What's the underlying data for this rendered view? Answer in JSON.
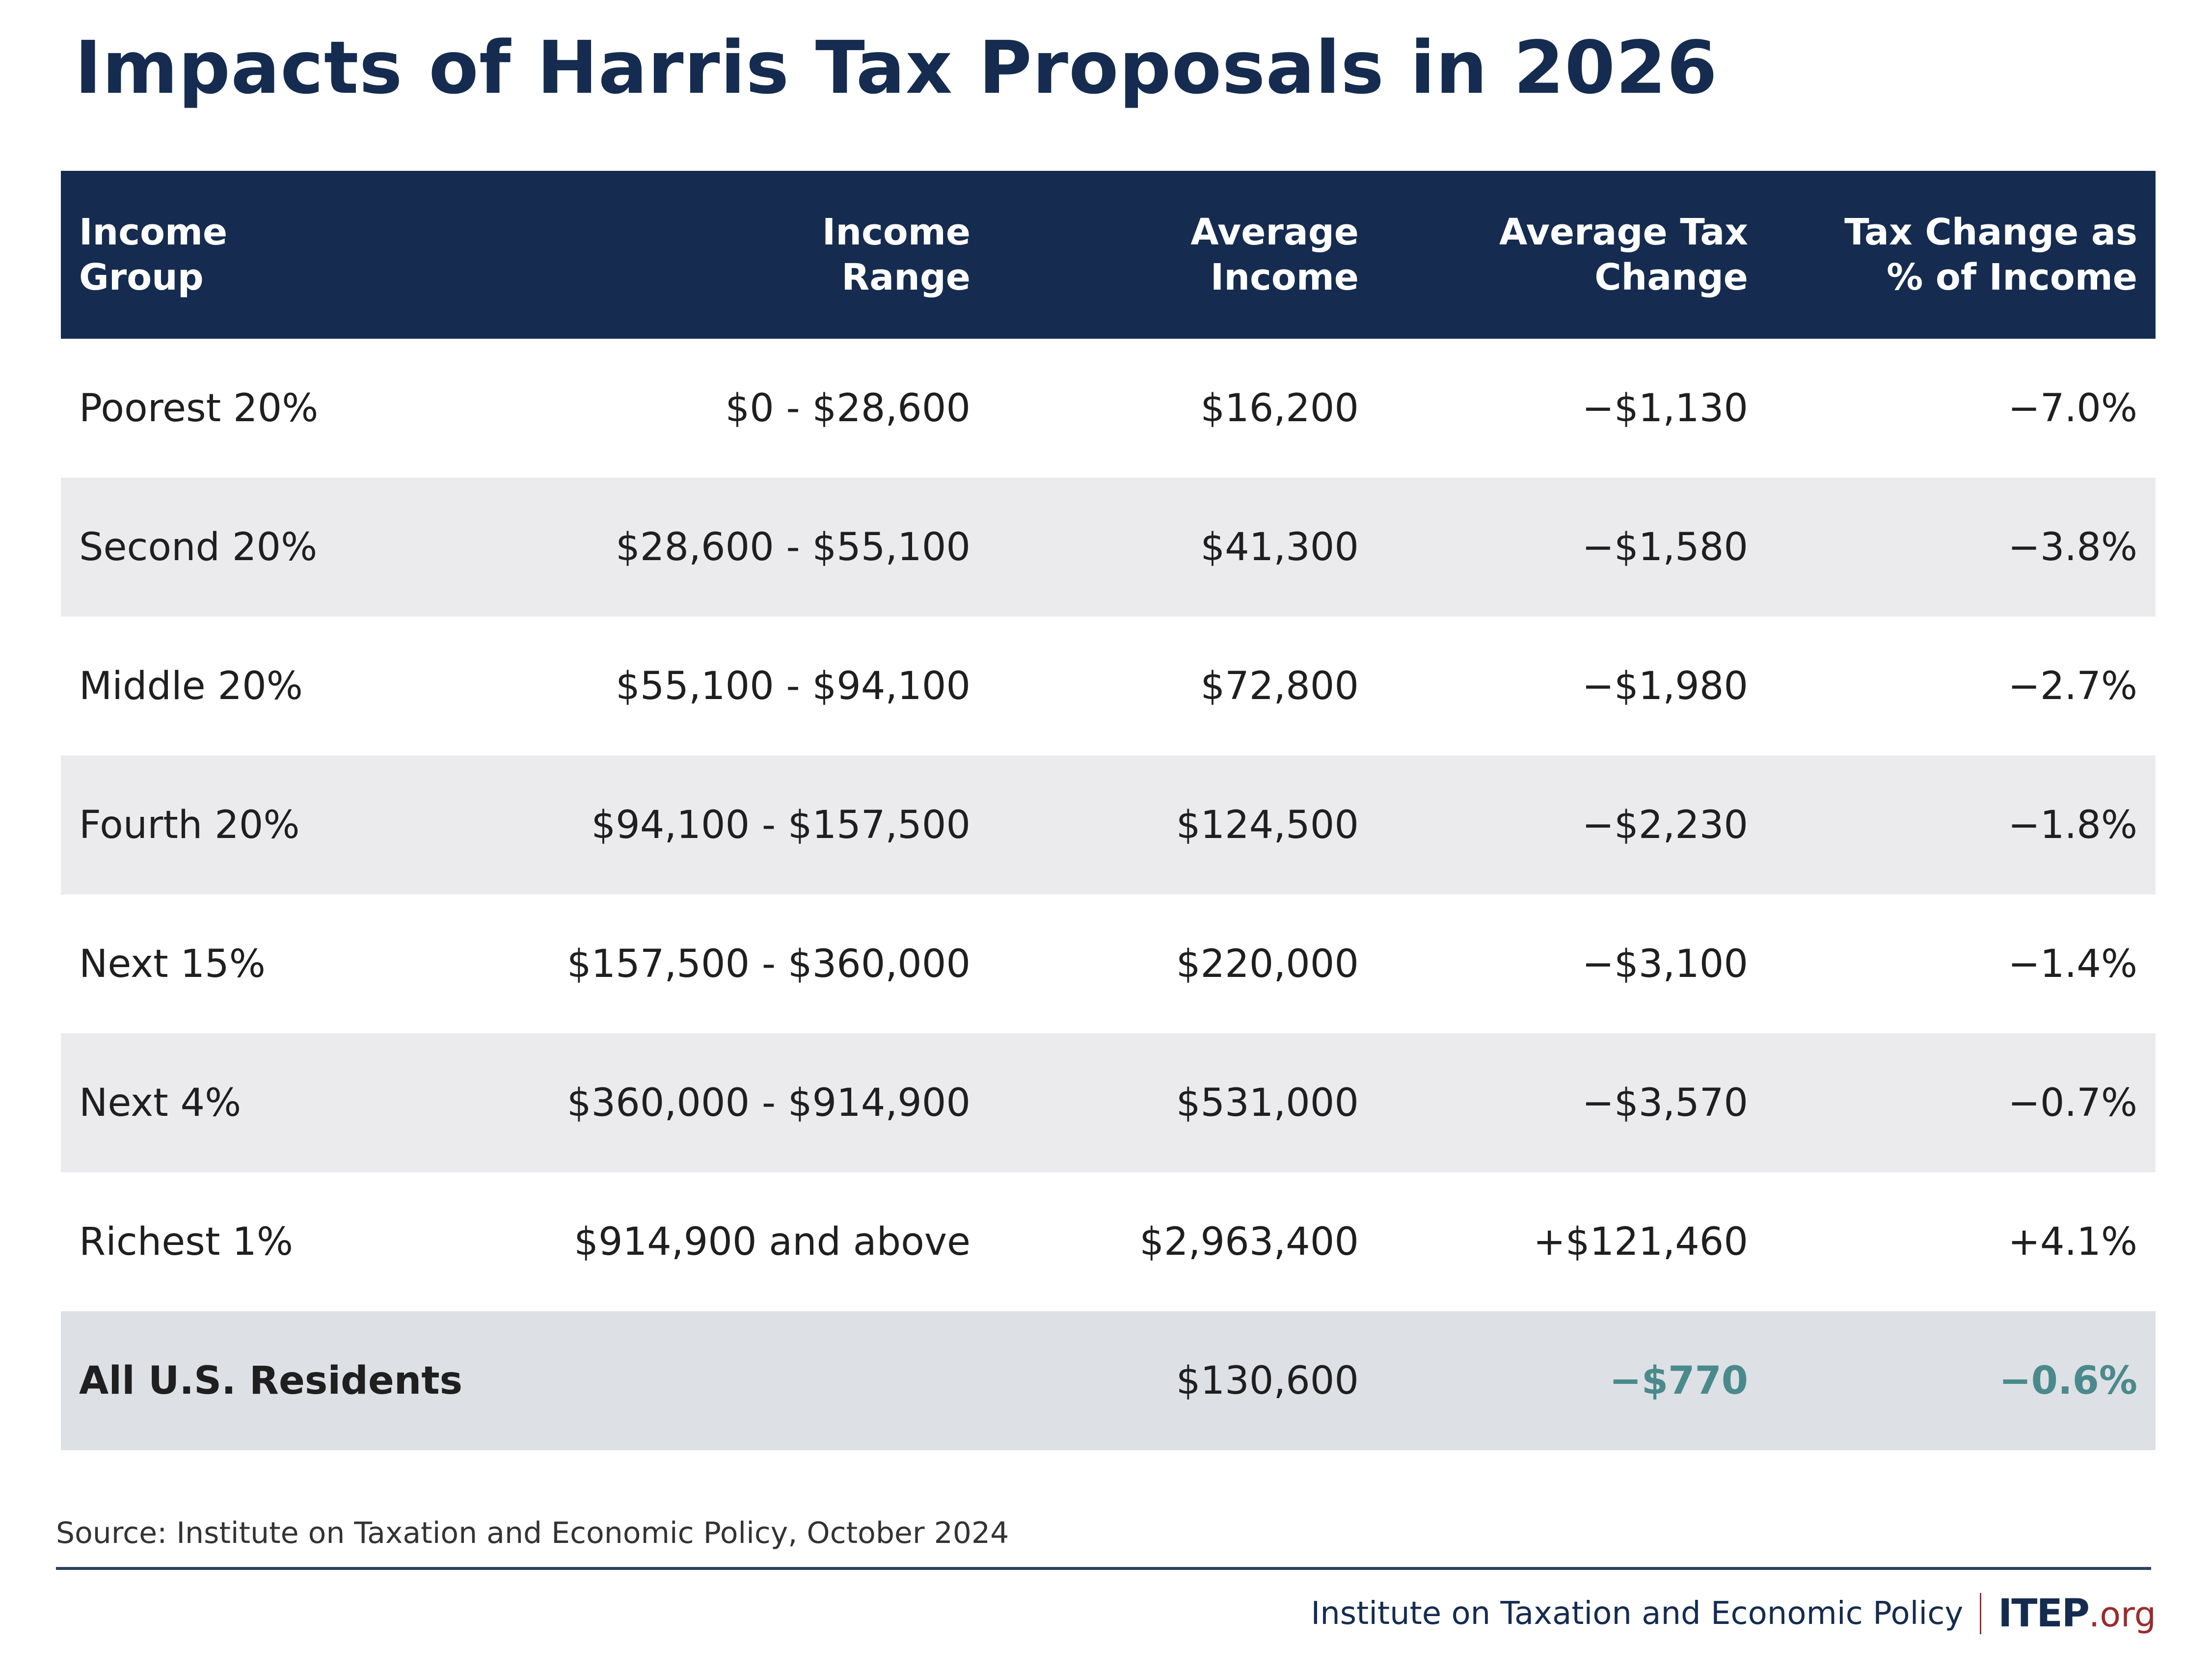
{
  "title": "Impacts of Harris Tax Proposals in 2026",
  "table": {
    "headers": [
      {
        "line1": "Income",
        "line2": "Group"
      },
      {
        "line1": "Income",
        "line2": "Range"
      },
      {
        "line1": "Average",
        "line2": "Income"
      },
      {
        "line1": "Average Tax",
        "line2": "Change"
      },
      {
        "line1": "Tax Change as",
        "line2": "% of Income"
      }
    ],
    "rows": [
      {
        "group": "Poorest 20%",
        "range": "$0 - $28,600",
        "avg_income": "$16,200",
        "avg_tax_change": "−$1,130",
        "pct_income": "−7.0%"
      },
      {
        "group": "Second 20%",
        "range": "$28,600 - $55,100",
        "avg_income": "$41,300",
        "avg_tax_change": "−$1,580",
        "pct_income": "−3.8%"
      },
      {
        "group": "Middle 20%",
        "range": "$55,100 - $94,100",
        "avg_income": "$72,800",
        "avg_tax_change": "−$1,980",
        "pct_income": "−2.7%"
      },
      {
        "group": "Fourth 20%",
        "range": "$94,100 - $157,500",
        "avg_income": "$124,500",
        "avg_tax_change": "−$2,230",
        "pct_income": "−1.8%"
      },
      {
        "group": "Next 15%",
        "range": "$157,500 - $360,000",
        "avg_income": "$220,000",
        "avg_tax_change": "−$3,100",
        "pct_income": "−1.4%"
      },
      {
        "group": "Next 4%",
        "range": "$360,000 - $914,900",
        "avg_income": "$531,000",
        "avg_tax_change": "−$3,570",
        "pct_income": "−0.7%"
      },
      {
        "group": "Richest 1%",
        "range": "$914,900 and above",
        "avg_income": "$2,963,400",
        "avg_tax_change": "+$121,460",
        "pct_income": "+4.1%"
      }
    ],
    "total": {
      "group": "All U.S. Residents",
      "range": "",
      "avg_income": "$130,600",
      "avg_tax_change": "−$770",
      "pct_income": "−0.6%"
    }
  },
  "colors": {
    "header_bg": "#152c50",
    "title": "#152c50",
    "row_alt_bg": "#ebebed",
    "total_bg": "#dde0e5",
    "total_accent": "#4a8a8c",
    "logo_org": "#9b2b2b"
  },
  "source": "Source: Institute on Taxation and Economic Policy, October 2024",
  "footer": {
    "org_name": "Institute on Taxation and Economic Policy",
    "logo_main": "ITEP",
    "logo_suffix": ".org"
  }
}
